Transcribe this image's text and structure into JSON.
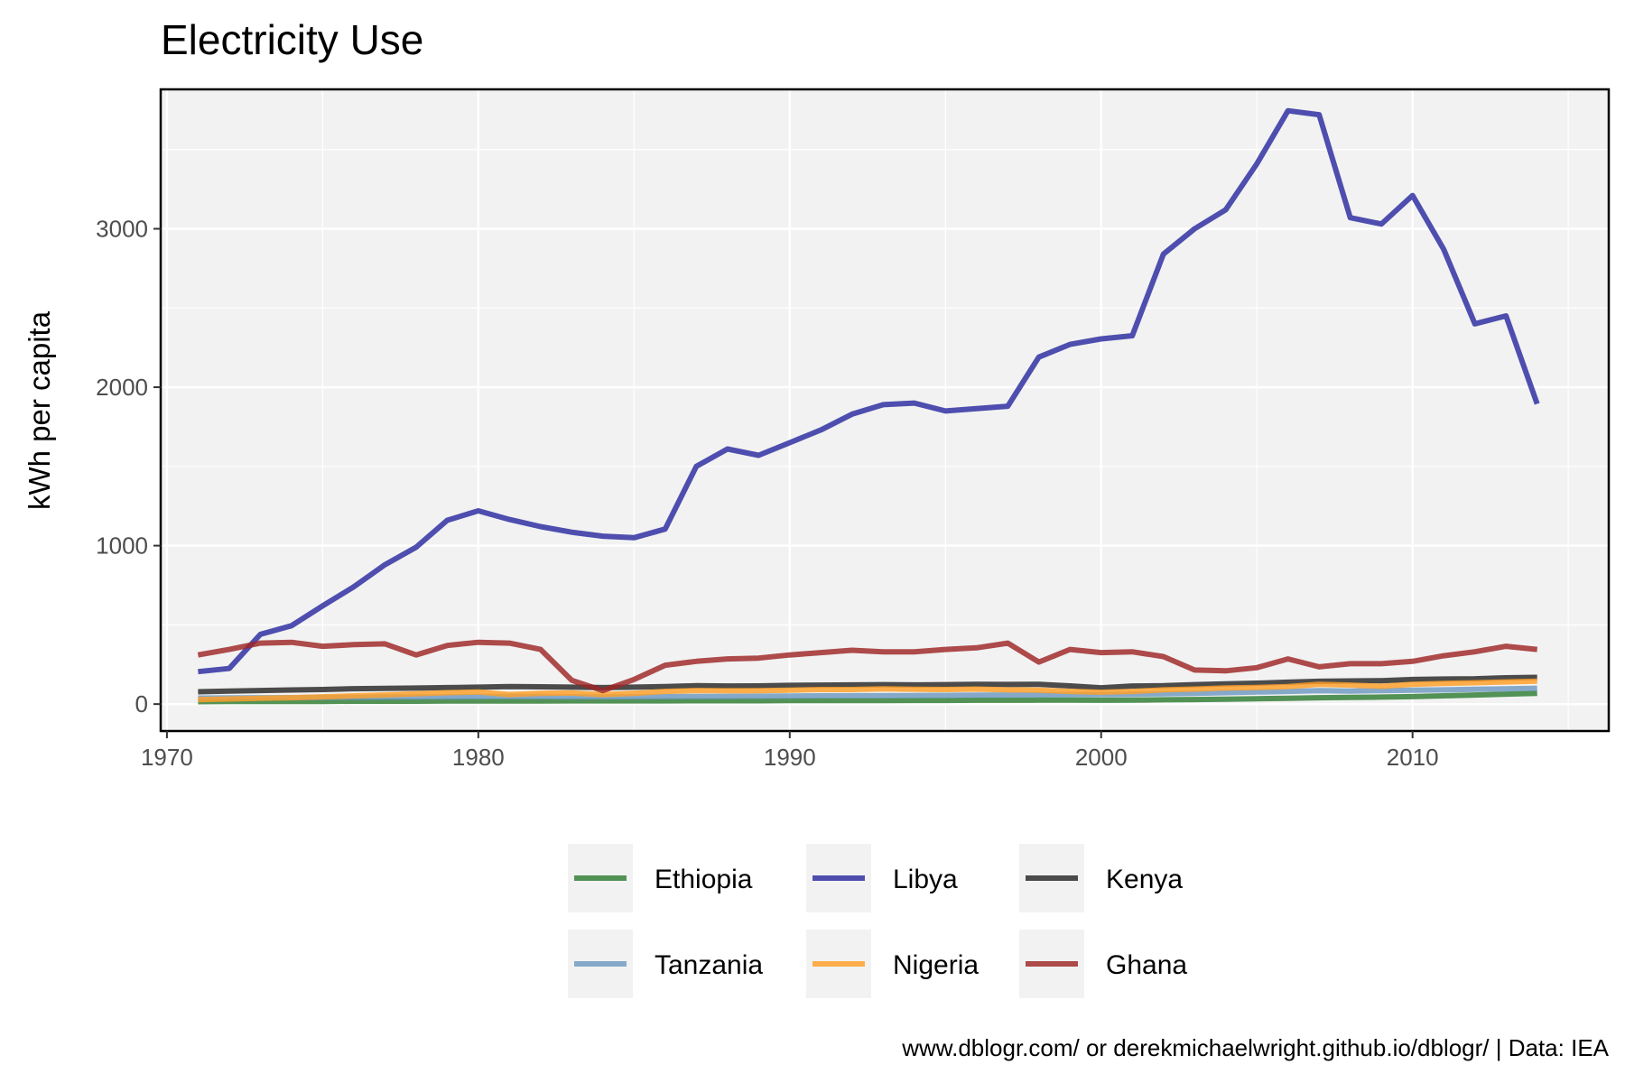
{
  "chart_data": {
    "type": "line",
    "title": "Electricity Use",
    "subtitle": "",
    "xlabel": "",
    "ylabel": "kWh per capita",
    "caption": "www.dblogr.com/ or derekmichaelwright.github.io/dblogr/ | Data: IEA",
    "xlim": [
      1969.8,
      2016.3
    ],
    "ylim": [
      -170,
      3880
    ],
    "x_ticks": [
      1970,
      1980,
      1990,
      2000,
      2010
    ],
    "y_ticks": [
      0,
      1000,
      2000,
      3000
    ],
    "grid": true,
    "legend_position": "bottom",
    "x": [
      1971,
      1972,
      1973,
      1974,
      1975,
      1976,
      1977,
      1978,
      1979,
      1980,
      1981,
      1982,
      1983,
      1984,
      1985,
      1986,
      1987,
      1988,
      1989,
      1990,
      1991,
      1992,
      1993,
      1994,
      1995,
      1996,
      1997,
      1998,
      1999,
      2000,
      2001,
      2002,
      2003,
      2004,
      2005,
      2006,
      2007,
      2008,
      2009,
      2010,
      2011,
      2012,
      2013,
      2014
    ],
    "series": [
      {
        "name": "Ethiopia",
        "color": "#2e7d32",
        "values": [
          15,
          16,
          17,
          17,
          17,
          18,
          18,
          18,
          19,
          19,
          19,
          19,
          20,
          20,
          20,
          20,
          21,
          21,
          21,
          22,
          22,
          22,
          22,
          23,
          23,
          24,
          24,
          25,
          25,
          24,
          25,
          27,
          29,
          31,
          34,
          37,
          40,
          42,
          44,
          47,
          52,
          57,
          63,
          68
        ]
      },
      {
        "name": "Libya",
        "color": "#2a2aa0",
        "values": [
          205,
          225,
          440,
          495,
          620,
          740,
          880,
          990,
          1160,
          1220,
          1165,
          1120,
          1085,
          1060,
          1050,
          1105,
          1500,
          1610,
          1570,
          1650,
          1730,
          1830,
          1890,
          1900,
          1850,
          1865,
          1880,
          2190,
          2270,
          2305,
          2325,
          2840,
          3000,
          3120,
          3410,
          3745,
          3720,
          3070,
          3030,
          3210,
          2870,
          2400,
          2450,
          1895
        ]
      },
      {
        "name": "Kenya",
        "color": "#262626",
        "values": [
          78,
          82,
          86,
          89,
          92,
          97,
          99,
          101,
          104,
          107,
          110,
          109,
          107,
          104,
          107,
          110,
          116,
          114,
          115,
          118,
          120,
          121,
          123,
          121,
          123,
          125,
          124,
          125,
          115,
          103,
          114,
          116,
          123,
          128,
          132,
          138,
          144,
          146,
          148,
          155,
          158,
          160,
          166,
          169
        ]
      },
      {
        "name": "Tanzania",
        "color": "#6e99c1",
        "values": [
          38,
          39,
          40,
          41,
          42,
          43,
          44,
          45,
          46,
          47,
          48,
          47,
          46,
          45,
          46,
          47,
          48,
          49,
          50,
          51,
          52,
          53,
          53,
          54,
          55,
          56,
          57,
          58,
          59,
          60,
          62,
          65,
          68,
          72,
          76,
          80,
          85,
          82,
          85,
          88,
          90,
          93,
          96,
          100
        ]
      },
      {
        "name": "Nigeria",
        "color": "#ff9f24",
        "values": [
          28,
          32,
          36,
          40,
          46,
          52,
          58,
          65,
          72,
          76,
          60,
          68,
          70,
          60,
          68,
          80,
          86,
          84,
          85,
          88,
          92,
          92,
          96,
          94,
          92,
          95,
          90,
          88,
          80,
          75,
          80,
          90,
          95,
          102,
          105,
          110,
          125,
          120,
          112,
          125,
          130,
          135,
          140,
          145
        ]
      },
      {
        "name": "Ghana",
        "color": "#9e2525",
        "values": [
          310,
          345,
          385,
          390,
          365,
          375,
          380,
          310,
          370,
          390,
          385,
          345,
          150,
          85,
          155,
          245,
          270,
          285,
          290,
          310,
          325,
          340,
          330,
          330,
          345,
          355,
          385,
          265,
          345,
          325,
          330,
          300,
          215,
          210,
          230,
          285,
          235,
          255,
          255,
          270,
          305,
          330,
          365,
          345
        ]
      }
    ],
    "legend_layout": [
      [
        "Ethiopia",
        "Libya",
        "Kenya"
      ],
      [
        "Tanzania",
        "Nigeria",
        "Ghana"
      ]
    ]
  }
}
